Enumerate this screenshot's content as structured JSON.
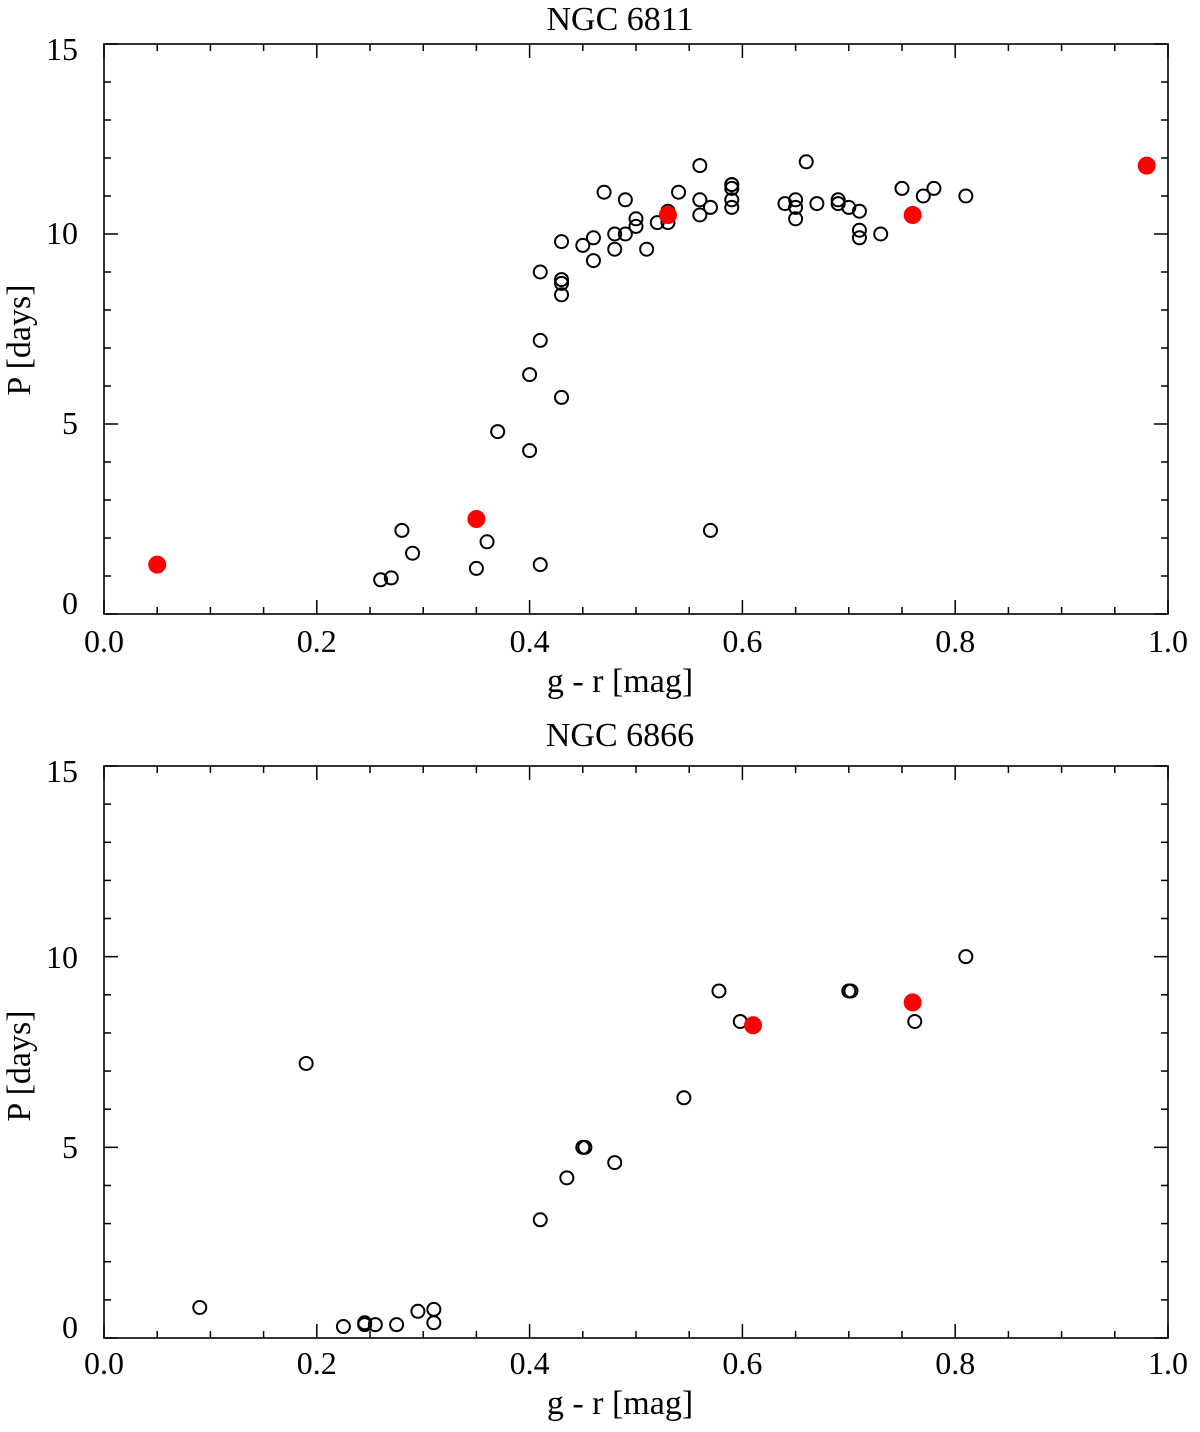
{
  "chart_data": [
    {
      "type": "scatter",
      "title": "NGC 6811",
      "xlabel": "g - r [mag]",
      "ylabel": "P [days]",
      "xlim": [
        0.0,
        1.0
      ],
      "ylim": [
        0,
        15
      ],
      "xticks": [
        0.0,
        0.2,
        0.4,
        0.6,
        0.8,
        1.0
      ],
      "xtick_labels": [
        "0.0",
        "0.2",
        "0.4",
        "0.6",
        "0.8",
        "1.0"
      ],
      "yticks": [
        0,
        5,
        10,
        15
      ],
      "ytick_labels": [
        "0",
        "5",
        "10",
        "15"
      ],
      "grid": false,
      "series": [
        {
          "name": "open",
          "marker": "open-circle",
          "color": "#000000",
          "x": [
            0.26,
            0.27,
            0.28,
            0.29,
            0.35,
            0.36,
            0.37,
            0.4,
            0.4,
            0.41,
            0.41,
            0.41,
            0.43,
            0.43,
            0.43,
            0.43,
            0.43,
            0.45,
            0.46,
            0.46,
            0.47,
            0.48,
            0.48,
            0.49,
            0.49,
            0.5,
            0.5,
            0.51,
            0.52,
            0.53,
            0.53,
            0.54,
            0.56,
            0.56,
            0.56,
            0.57,
            0.57,
            0.59,
            0.59,
            0.59,
            0.59,
            0.59,
            0.64,
            0.65,
            0.65,
            0.65,
            0.66,
            0.67,
            0.69,
            0.69,
            0.7,
            0.71,
            0.71,
            0.71,
            0.73,
            0.75,
            0.77,
            0.78,
            0.81
          ],
          "y": [
            0.9,
            0.95,
            2.2,
            1.6,
            1.2,
            1.9,
            4.8,
            4.3,
            6.3,
            9.0,
            7.2,
            1.3,
            9.8,
            8.8,
            8.7,
            8.4,
            5.7,
            9.7,
            9.9,
            9.3,
            11.1,
            9.6,
            10.0,
            10.9,
            10.0,
            10.2,
            10.4,
            9.6,
            10.3,
            10.3,
            10.6,
            11.1,
            11.8,
            10.9,
            10.5,
            10.7,
            2.2,
            11.3,
            11.2,
            10.9,
            10.7,
            11.3,
            10.8,
            10.9,
            10.7,
            10.4,
            11.9,
            10.8,
            10.9,
            10.8,
            10.7,
            10.6,
            10.1,
            9.9,
            10.0,
            11.2,
            11.0,
            11.2,
            11.0
          ]
        },
        {
          "name": "filled",
          "marker": "filled-circle",
          "color": "#ff0000",
          "x": [
            0.05,
            0.35,
            0.53,
            0.76,
            0.98
          ],
          "y": [
            1.3,
            2.5,
            10.5,
            10.5,
            11.8
          ]
        }
      ]
    },
    {
      "type": "scatter",
      "title": "NGC 6866",
      "xlabel": "g - r [mag]",
      "ylabel": "P [days]",
      "xlim": [
        0.0,
        1.0
      ],
      "ylim": [
        0,
        15
      ],
      "xticks": [
        0.0,
        0.2,
        0.4,
        0.6,
        0.8,
        1.0
      ],
      "xtick_labels": [
        "0.0",
        "0.2",
        "0.4",
        "0.6",
        "0.8",
        "1.0"
      ],
      "yticks": [
        0,
        5,
        10,
        15
      ],
      "ytick_labels": [
        "0",
        "5",
        "10",
        "15"
      ],
      "grid": false,
      "series": [
        {
          "name": "open",
          "marker": "open-circle",
          "color": "#000000",
          "x": [
            0.09,
            0.19,
            0.225,
            0.245,
            0.245,
            0.255,
            0.275,
            0.295,
            0.31,
            0.31,
            0.41,
            0.435,
            0.45,
            0.452,
            0.48,
            0.545,
            0.578,
            0.598,
            0.7,
            0.702,
            0.762,
            0.81
          ],
          "y": [
            0.8,
            7.2,
            0.3,
            0.4,
            0.35,
            0.35,
            0.35,
            0.7,
            0.75,
            0.4,
            3.1,
            4.2,
            5.0,
            5.0,
            4.6,
            6.3,
            9.1,
            8.3,
            9.1,
            9.1,
            8.3,
            10.0
          ]
        },
        {
          "name": "filled",
          "marker": "filled-circle",
          "color": "#ff0000",
          "x": [
            0.61,
            0.76
          ],
          "y": [
            8.2,
            8.8
          ]
        }
      ]
    }
  ]
}
